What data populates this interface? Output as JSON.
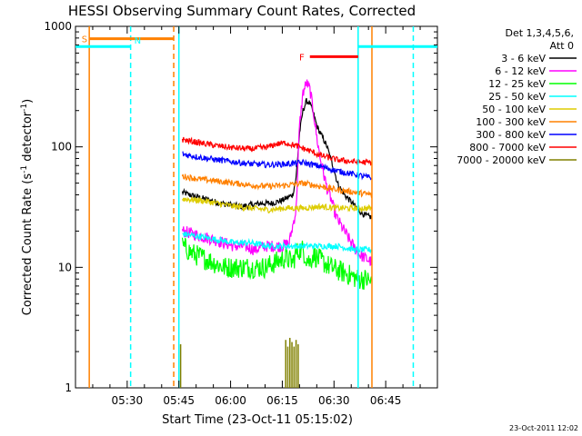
{
  "chart_data": {
    "type": "line",
    "title": "HESSI Observing Summary Count Rates, Corrected",
    "xlabel": "Start Time (23-Oct-11 05:15:02)",
    "ylabel": "Corrected Count Rate (s",
    "ylabel_sup1": "-1",
    "ylabel_mid": " detector",
    "ylabel_sup2": "-1",
    "ylabel_end": ")",
    "x_unit": "minutes after 05:15:02",
    "xlim": [
      0,
      105
    ],
    "ylim": [
      1,
      1000
    ],
    "yscale": "log",
    "x_ticks": [
      {
        "t": 15,
        "label": "05:30"
      },
      {
        "t": 30,
        "label": "05:45"
      },
      {
        "t": 45,
        "label": "06:00"
      },
      {
        "t": 60,
        "label": "06:15"
      },
      {
        "t": 75,
        "label": "06:30"
      },
      {
        "t": 90,
        "label": "06:45"
      }
    ],
    "y_ticks": [
      {
        "v": 1,
        "label": "1"
      },
      {
        "v": 10,
        "label": "10"
      },
      {
        "v": 100,
        "label": "100"
      },
      {
        "v": 1000,
        "label": "1000"
      }
    ],
    "legend": {
      "title1": "Det 1,3,4,5,6,",
      "title2": "Att 0",
      "position": "right"
    },
    "series": [
      {
        "name": "3 - 6 keV",
        "color": "#000000",
        "x": [
          31,
          33,
          36,
          39,
          42,
          45,
          48,
          51,
          54,
          57,
          60,
          63,
          64,
          65,
          66,
          67,
          68,
          69,
          70,
          71,
          72,
          73,
          74,
          75,
          76,
          78,
          80,
          82,
          84,
          86
        ],
        "y": [
          42,
          40,
          38,
          36,
          34,
          33,
          32,
          33,
          34,
          34,
          36,
          40,
          55,
          130,
          200,
          240,
          230,
          190,
          150,
          130,
          115,
          100,
          80,
          65,
          50,
          40,
          35,
          30,
          27,
          26
        ]
      },
      {
        "name": "6 - 12 keV",
        "color": "#ff00ff",
        "x": [
          31,
          34,
          37,
          40,
          43,
          46,
          49,
          52,
          55,
          58,
          60,
          62,
          64,
          65,
          66,
          67,
          68,
          69,
          70,
          71,
          72,
          73,
          74,
          75,
          76,
          78,
          80,
          82,
          84,
          86
        ],
        "y": [
          20,
          19,
          18,
          17,
          16,
          15,
          15,
          14,
          15,
          15,
          15,
          16,
          30,
          150,
          280,
          340,
          300,
          200,
          120,
          80,
          60,
          45,
          38,
          30,
          25,
          20,
          16,
          13,
          12,
          11
        ]
      },
      {
        "name": "12 - 25 keV",
        "color": "#00ff00",
        "x": [
          31,
          34,
          37,
          40,
          43,
          46,
          49,
          52,
          55,
          58,
          61,
          63,
          64,
          65,
          66,
          67,
          68,
          69,
          70,
          72,
          74,
          76,
          78,
          80,
          82,
          84,
          86
        ],
        "y": [
          15,
          13,
          12,
          11,
          10,
          10,
          10,
          10,
          10,
          11,
          12,
          11,
          13,
          14,
          14,
          12,
          11,
          13,
          12,
          11,
          10,
          9.5,
          9,
          8.5,
          8,
          8,
          7.5
        ]
      },
      {
        "name": "25 - 50 keV",
        "color": "#00ffff",
        "x": [
          31,
          36,
          41,
          46,
          51,
          56,
          61,
          66,
          71,
          76,
          81,
          86
        ],
        "y": [
          19,
          18,
          17,
          16,
          16,
          15,
          15,
          15,
          15,
          15,
          14,
          14
        ]
      },
      {
        "name": "50 - 100 keV",
        "color": "#ddcc00",
        "x": [
          31,
          36,
          41,
          46,
          51,
          56,
          61,
          66,
          71,
          76,
          81,
          86
        ],
        "y": [
          37,
          36,
          34,
          32,
          31,
          30,
          31,
          31,
          32,
          31,
          31,
          31
        ]
      },
      {
        "name": "100 - 300 keV",
        "color": "#ff8000",
        "x": [
          31,
          36,
          41,
          46,
          51,
          56,
          61,
          66,
          71,
          76,
          81,
          86
        ],
        "y": [
          57,
          54,
          52,
          50,
          48,
          47,
          48,
          50,
          47,
          44,
          42,
          40
        ]
      },
      {
        "name": "300 - 800 keV",
        "color": "#0000ff",
        "x": [
          31,
          36,
          41,
          46,
          51,
          56,
          61,
          66,
          71,
          76,
          81,
          86
        ],
        "y": [
          87,
          82,
          78,
          75,
          72,
          71,
          72,
          74,
          69,
          63,
          59,
          55
        ]
      },
      {
        "name": "800 - 7000 keV",
        "color": "#ff0000",
        "x": [
          31,
          36,
          41,
          46,
          51,
          56,
          58,
          61,
          64,
          67,
          71,
          76,
          81,
          86
        ],
        "y": [
          115,
          108,
          102,
          98,
          96,
          100,
          105,
          108,
          102,
          95,
          85,
          78,
          75,
          74
        ]
      },
      {
        "name": "7000 - 20000 keV",
        "color": "#808000",
        "x": [],
        "y": []
      }
    ],
    "vertical_lines": [
      {
        "t": 4,
        "color": "#ff8000",
        "style": "solid"
      },
      {
        "t": 28.5,
        "color": "#ff8000",
        "style": "dashed"
      },
      {
        "t": 30,
        "color": "#00ffff",
        "style": "solid"
      },
      {
        "t": 16,
        "color": "#00ffff",
        "style": "dashed"
      },
      {
        "t": 82,
        "color": "#00ffff",
        "style": "solid"
      },
      {
        "t": 86,
        "color": "#ff8000",
        "style": "solid"
      },
      {
        "t": 98,
        "color": "#00ffff",
        "style": "dashed"
      }
    ],
    "segments": [
      {
        "label": "S",
        "color": "#ff8000",
        "t0": 4,
        "t1": 28.5,
        "level": 790
      },
      {
        "label": "N",
        "color": "#00ffff",
        "t0": -2,
        "t1": 16,
        "level": 680
      },
      {
        "label": "",
        "color": "#00ffff",
        "t0": 82,
        "t1": 105,
        "level": 680
      },
      {
        "label": "F",
        "color": "#ff0000",
        "t0": 68,
        "t1": 82,
        "level": 560
      }
    ],
    "high_energy_spikes": [
      {
        "t": 30.5,
        "v": 2.3
      },
      {
        "t": 61,
        "v": 2.5
      },
      {
        "t": 61.6,
        "v": 2.2
      },
      {
        "t": 62.2,
        "v": 2.6
      },
      {
        "t": 62.8,
        "v": 2.4
      },
      {
        "t": 63.4,
        "v": 2.2
      },
      {
        "t": 64.0,
        "v": 2.5
      },
      {
        "t": 64.6,
        "v": 2.3
      }
    ]
  },
  "footer": {
    "timestamp": "23-Oct-2011 12:02"
  }
}
